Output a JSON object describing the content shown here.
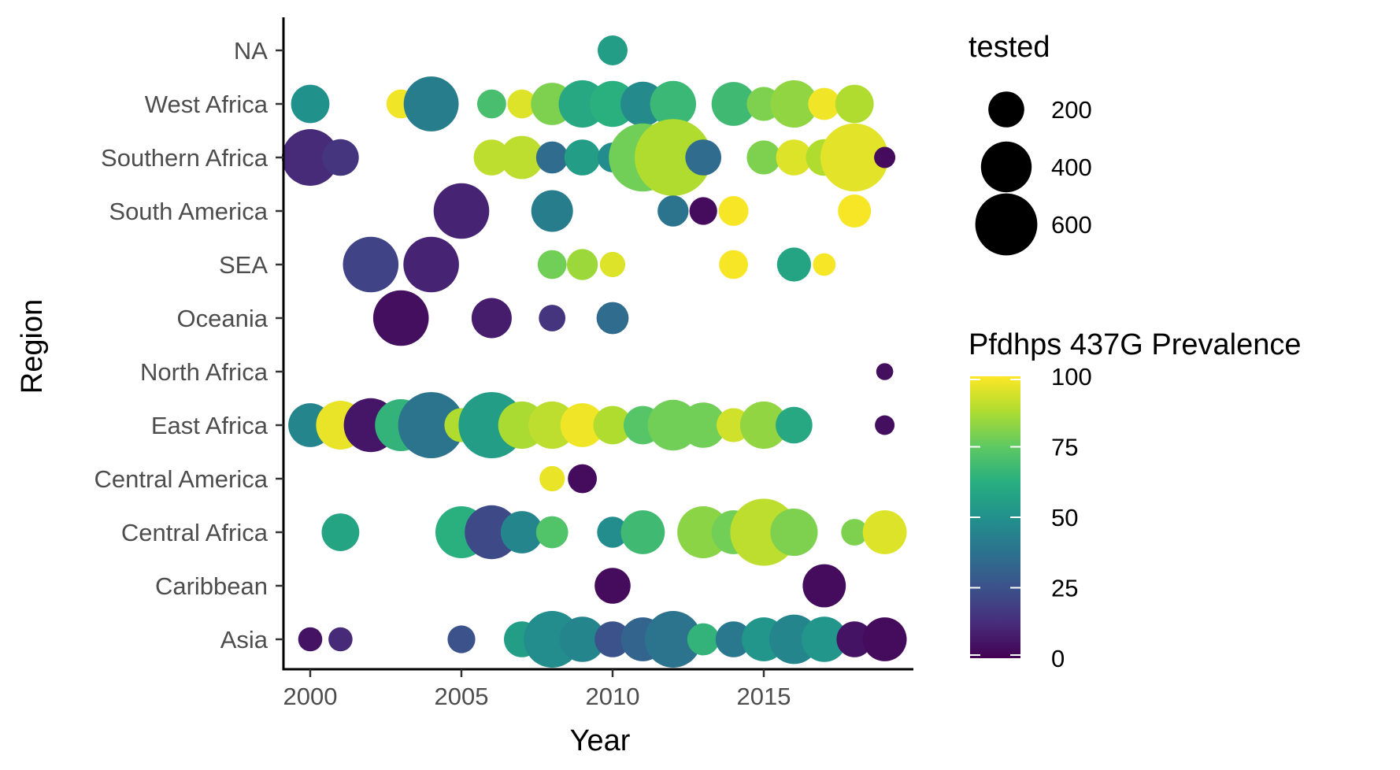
{
  "chart_data": {
    "type": "scatter",
    "xlabel": "Year",
    "ylabel": "Region",
    "xlim": [
      1999,
      2020
    ],
    "xticks": [
      2000,
      2005,
      2010,
      2015
    ],
    "categories": [
      "Asia",
      "Caribbean",
      "Central Africa",
      "Central America",
      "East Africa",
      "North Africa",
      "Oceania",
      "SEA",
      "South America",
      "Southern Africa",
      "West Africa",
      "NA"
    ],
    "size_legend": {
      "title": "tested",
      "values": [
        200,
        400,
        600
      ],
      "labels": [
        "200",
        "400",
        "600"
      ]
    },
    "color_legend": {
      "title": "Pfdhps 437G Prevalence",
      "min": 0,
      "max": 100,
      "ticks": [
        0,
        25,
        50,
        75,
        100
      ],
      "labels": [
        "0",
        "25",
        "50",
        "75",
        "100"
      ]
    },
    "points": [
      {
        "region": "NA",
        "year": 2010,
        "prevalence": 55,
        "tested": 140
      },
      {
        "region": "West Africa",
        "year": 2000,
        "prevalence": 50,
        "tested": 230
      },
      {
        "region": "West Africa",
        "year": 2003,
        "prevalence": 98,
        "tested": 130
      },
      {
        "region": "West Africa",
        "year": 2004,
        "prevalence": 42,
        "tested": 470
      },
      {
        "region": "West Africa",
        "year": 2006,
        "prevalence": 70,
        "tested": 130
      },
      {
        "region": "West Africa",
        "year": 2007,
        "prevalence": 95,
        "tested": 130
      },
      {
        "region": "West Africa",
        "year": 2008,
        "prevalence": 80,
        "tested": 280
      },
      {
        "region": "West Africa",
        "year": 2009,
        "prevalence": 60,
        "tested": 350
      },
      {
        "region": "West Africa",
        "year": 2010,
        "prevalence": 63,
        "tested": 330
      },
      {
        "region": "West Africa",
        "year": 2011,
        "prevalence": 47,
        "tested": 310
      },
      {
        "region": "West Africa",
        "year": 2012,
        "prevalence": 67,
        "tested": 330
      },
      {
        "region": "West Africa",
        "year": 2014,
        "prevalence": 68,
        "tested": 300
      },
      {
        "region": "West Africa",
        "year": 2015,
        "prevalence": 80,
        "tested": 180
      },
      {
        "region": "West Africa",
        "year": 2016,
        "prevalence": 83,
        "tested": 350
      },
      {
        "region": "West Africa",
        "year": 2017,
        "prevalence": 98,
        "tested": 160
      },
      {
        "region": "West Africa",
        "year": 2018,
        "prevalence": 88,
        "tested": 230
      },
      {
        "region": "Southern Africa",
        "year": 2000,
        "prevalence": 12,
        "tested": 500
      },
      {
        "region": "Southern Africa",
        "year": 2001,
        "prevalence": 15,
        "tested": 210
      },
      {
        "region": "Southern Africa",
        "year": 2006,
        "prevalence": 90,
        "tested": 200
      },
      {
        "region": "Southern Africa",
        "year": 2007,
        "prevalence": 90,
        "tested": 290
      },
      {
        "region": "Southern Africa",
        "year": 2008,
        "prevalence": 35,
        "tested": 160
      },
      {
        "region": "Southern Africa",
        "year": 2009,
        "prevalence": 55,
        "tested": 200
      },
      {
        "region": "Southern Africa",
        "year": 2010,
        "prevalence": 48,
        "tested": 140
      },
      {
        "region": "Southern Africa",
        "year": 2011,
        "prevalence": 78,
        "tested": 720
      },
      {
        "region": "Southern Africa",
        "year": 2012,
        "prevalence": 88,
        "tested": 920
      },
      {
        "region": "Southern Africa",
        "year": 2013,
        "prevalence": 35,
        "tested": 200
      },
      {
        "region": "Southern Africa",
        "year": 2015,
        "prevalence": 80,
        "tested": 180
      },
      {
        "region": "Southern Africa",
        "year": 2016,
        "prevalence": 95,
        "tested": 200
      },
      {
        "region": "Southern Africa",
        "year": 2017,
        "prevalence": 88,
        "tested": 210
      },
      {
        "region": "Southern Africa",
        "year": 2018,
        "prevalence": 96,
        "tested": 720
      },
      {
        "region": "Southern Africa",
        "year": 2019,
        "prevalence": 3,
        "tested": 70
      },
      {
        "region": "South America",
        "year": 2005,
        "prevalence": 10,
        "tested": 480
      },
      {
        "region": "South America",
        "year": 2008,
        "prevalence": 42,
        "tested": 270
      },
      {
        "region": "South America",
        "year": 2012,
        "prevalence": 38,
        "tested": 150
      },
      {
        "region": "South America",
        "year": 2013,
        "prevalence": 3,
        "tested": 120
      },
      {
        "region": "South America",
        "year": 2014,
        "prevalence": 99,
        "tested": 140
      },
      {
        "region": "South America",
        "year": 2018,
        "prevalence": 99,
        "tested": 170
      },
      {
        "region": "SEA",
        "year": 2002,
        "prevalence": 20,
        "tested": 480
      },
      {
        "region": "SEA",
        "year": 2004,
        "prevalence": 10,
        "tested": 480
      },
      {
        "region": "SEA",
        "year": 2008,
        "prevalence": 78,
        "tested": 130
      },
      {
        "region": "SEA",
        "year": 2009,
        "prevalence": 85,
        "tested": 150
      },
      {
        "region": "SEA",
        "year": 2010,
        "prevalence": 95,
        "tested": 100
      },
      {
        "region": "SEA",
        "year": 2014,
        "prevalence": 99,
        "tested": 130
      },
      {
        "region": "SEA",
        "year": 2016,
        "prevalence": 58,
        "tested": 180
      },
      {
        "region": "SEA",
        "year": 2017,
        "prevalence": 99,
        "tested": 80
      },
      {
        "region": "Oceania",
        "year": 2003,
        "prevalence": 4,
        "tested": 480
      },
      {
        "region": "Oceania",
        "year": 2006,
        "prevalence": 8,
        "tested": 250
      },
      {
        "region": "Oceania",
        "year": 2008,
        "prevalence": 15,
        "tested": 110
      },
      {
        "region": "Oceania",
        "year": 2010,
        "prevalence": 35,
        "tested": 160
      },
      {
        "region": "North Africa",
        "year": 2019,
        "prevalence": 4,
        "tested": 45
      },
      {
        "region": "East Africa",
        "year": 2000,
        "prevalence": 45,
        "tested": 300
      },
      {
        "region": "East Africa",
        "year": 2001,
        "prevalence": 97,
        "tested": 370
      },
      {
        "region": "East Africa",
        "year": 2002,
        "prevalence": 6,
        "tested": 450
      },
      {
        "region": "East Africa",
        "year": 2003,
        "prevalence": 65,
        "tested": 420
      },
      {
        "region": "East Africa",
        "year": 2004,
        "prevalence": 38,
        "tested": 680
      },
      {
        "region": "East Africa",
        "year": 2005,
        "prevalence": 88,
        "tested": 180
      },
      {
        "region": "East Africa",
        "year": 2006,
        "prevalence": 55,
        "tested": 680
      },
      {
        "region": "East Africa",
        "year": 2007,
        "prevalence": 87,
        "tested": 350
      },
      {
        "region": "East Africa",
        "year": 2008,
        "prevalence": 90,
        "tested": 350
      },
      {
        "region": "East Africa",
        "year": 2009,
        "prevalence": 98,
        "tested": 300
      },
      {
        "region": "East Africa",
        "year": 2010,
        "prevalence": 88,
        "tested": 230
      },
      {
        "region": "East Africa",
        "year": 2011,
        "prevalence": 73,
        "tested": 230
      },
      {
        "region": "East Africa",
        "year": 2012,
        "prevalence": 78,
        "tested": 400
      },
      {
        "region": "East Africa",
        "year": 2013,
        "prevalence": 78,
        "tested": 320
      },
      {
        "region": "East Africa",
        "year": 2014,
        "prevalence": 93,
        "tested": 180
      },
      {
        "region": "East Africa",
        "year": 2015,
        "prevalence": 83,
        "tested": 350
      },
      {
        "region": "East Africa",
        "year": 2016,
        "prevalence": 60,
        "tested": 210
      },
      {
        "region": "East Africa",
        "year": 2019,
        "prevalence": 4,
        "tested": 60
      },
      {
        "region": "Central America",
        "year": 2008,
        "prevalence": 97,
        "tested": 100
      },
      {
        "region": "Central America",
        "year": 2009,
        "prevalence": 3,
        "tested": 130
      },
      {
        "region": "Central Africa",
        "year": 2001,
        "prevalence": 58,
        "tested": 220
      },
      {
        "region": "Central Africa",
        "year": 2005,
        "prevalence": 63,
        "tested": 420
      },
      {
        "region": "Central Africa",
        "year": 2006,
        "prevalence": 22,
        "tested": 450
      },
      {
        "region": "Central Africa",
        "year": 2007,
        "prevalence": 45,
        "tested": 280
      },
      {
        "region": "Central Africa",
        "year": 2008,
        "prevalence": 72,
        "tested": 160
      },
      {
        "region": "Central Africa",
        "year": 2010,
        "prevalence": 48,
        "tested": 150
      },
      {
        "region": "Central Africa",
        "year": 2011,
        "prevalence": 68,
        "tested": 300
      },
      {
        "region": "Central Africa",
        "year": 2013,
        "prevalence": 82,
        "tested": 420
      },
      {
        "region": "Central Africa",
        "year": 2014,
        "prevalence": 78,
        "tested": 300
      },
      {
        "region": "Central Africa",
        "year": 2015,
        "prevalence": 90,
        "tested": 700
      },
      {
        "region": "Central Africa",
        "year": 2016,
        "prevalence": 80,
        "tested": 350
      },
      {
        "region": "Central Africa",
        "year": 2018,
        "prevalence": 80,
        "tested": 110
      },
      {
        "region": "Central Africa",
        "year": 2019,
        "prevalence": 95,
        "tested": 300
      },
      {
        "region": "Caribbean",
        "year": 2010,
        "prevalence": 3,
        "tested": 200
      },
      {
        "region": "Caribbean",
        "year": 2017,
        "prevalence": 3,
        "tested": 290
      },
      {
        "region": "Asia",
        "year": 2000,
        "prevalence": 5,
        "tested": 90
      },
      {
        "region": "Asia",
        "year": 2001,
        "prevalence": 12,
        "tested": 90
      },
      {
        "region": "Asia",
        "year": 2005,
        "prevalence": 25,
        "tested": 120
      },
      {
        "region": "Asia",
        "year": 2007,
        "prevalence": 55,
        "tested": 200
      },
      {
        "region": "Asia",
        "year": 2008,
        "prevalence": 48,
        "tested": 500
      },
      {
        "region": "Asia",
        "year": 2009,
        "prevalence": 45,
        "tested": 320
      },
      {
        "region": "Asia",
        "year": 2010,
        "prevalence": 25,
        "tested": 200
      },
      {
        "region": "Asia",
        "year": 2011,
        "prevalence": 32,
        "tested": 300
      },
      {
        "region": "Asia",
        "year": 2012,
        "prevalence": 38,
        "tested": 500
      },
      {
        "region": "Asia",
        "year": 2013,
        "prevalence": 65,
        "tested": 160
      },
      {
        "region": "Asia",
        "year": 2014,
        "prevalence": 40,
        "tested": 200
      },
      {
        "region": "Asia",
        "year": 2015,
        "prevalence": 52,
        "tested": 300
      },
      {
        "region": "Asia",
        "year": 2016,
        "prevalence": 45,
        "tested": 380
      },
      {
        "region": "Asia",
        "year": 2017,
        "prevalence": 52,
        "tested": 320
      },
      {
        "region": "Asia",
        "year": 2018,
        "prevalence": 5,
        "tested": 200
      },
      {
        "region": "Asia",
        "year": 2019,
        "prevalence": 3,
        "tested": 300
      }
    ]
  }
}
